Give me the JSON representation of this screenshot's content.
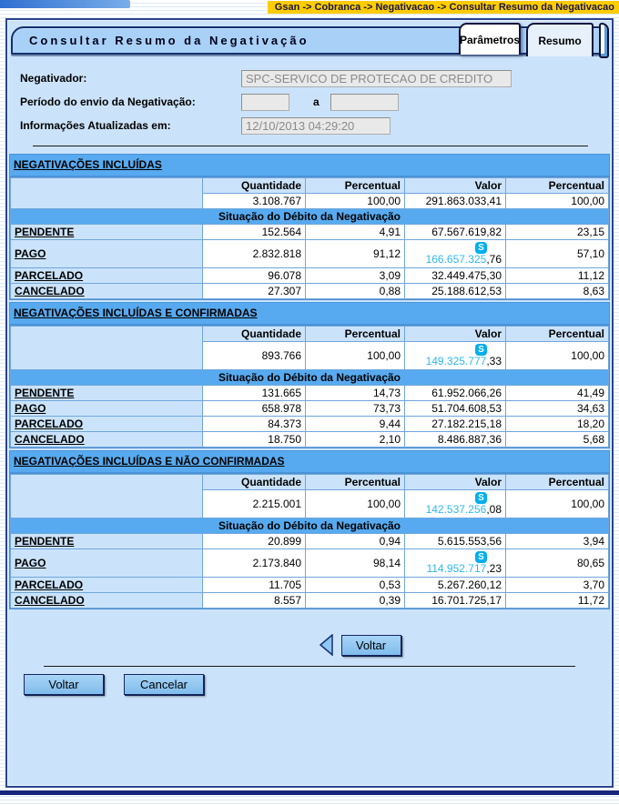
{
  "header": {
    "breadcrumb": "Gsan -> Cobranca -> Negativacao -> Consultar Resumo da Negativacao",
    "title": "Consultar Resumo da Negativação",
    "tabs": [
      {
        "label": "Parâmetros"
      },
      {
        "label": "Resumo"
      }
    ]
  },
  "form": {
    "negativador": {
      "label": "Negativador:",
      "value": "SPC-SERVICO DE PROTECAO DE CREDITO"
    },
    "periodo": {
      "label": "Período do envio da Negativação:",
      "value_start": "",
      "separator": "a",
      "value_end": ""
    },
    "atualizado": {
      "label": "Informações Atualizadas em:",
      "value": "12/10/2013 04:29:20"
    }
  },
  "table": {
    "columns": [
      "Quantidade",
      "Percentual",
      "Valor",
      "Percentual"
    ],
    "subheader": "Situação do Débito da Negativação"
  },
  "sections": [
    {
      "title": "NEGATIVAÇÕES INCLUÍDAS",
      "total": [
        "3.108.767",
        "100,00",
        "291.863.033,41",
        "100,00"
      ],
      "rows": [
        {
          "label": "PENDENTE",
          "values": [
            "152.564",
            "4,91",
            "67.567.619,82",
            "23,15"
          ]
        },
        {
          "label": "PAGO",
          "values": [
            "2.832.818",
            "91,12",
            {
              "skype": true,
              "main": "166.657.325",
              "dec": ",76"
            },
            "57,10"
          ]
        },
        {
          "label": "PARCELADO",
          "values": [
            "96.078",
            "3,09",
            "32.449.475,30",
            "11,12"
          ]
        },
        {
          "label": "CANCELADO",
          "values": [
            "27.307",
            "0,88",
            "25.188.612,53",
            "8,63"
          ]
        }
      ]
    },
    {
      "title": "NEGATIVAÇÕES INCLUÍDAS E CONFIRMADAS",
      "total": [
        "893.766",
        "100,00",
        {
          "skype": true,
          "main": "149.325.777",
          "dec": ",33"
        },
        "100,00"
      ],
      "rows": [
        {
          "label": "PENDENTE",
          "values": [
            "131.665",
            "14,73",
            "61.952.066,26",
            "41,49"
          ]
        },
        {
          "label": "PAGO",
          "values": [
            "658.978",
            "73,73",
            "51.704.608,53",
            "34,63"
          ]
        },
        {
          "label": "PARCELADO",
          "values": [
            "84.373",
            "9,44",
            "27.182.215,18",
            "18,20"
          ]
        },
        {
          "label": "CANCELADO",
          "values": [
            "18.750",
            "2,10",
            "8.486.887,36",
            "5,68"
          ]
        }
      ]
    },
    {
      "title": "NEGATIVAÇÕES INCLUÍDAS E NÃO CONFIRMADAS",
      "total": [
        "2.215.001",
        "100,00",
        {
          "skype": true,
          "main": "142.537.256",
          "dec": ",08"
        },
        "100,00"
      ],
      "rows": [
        {
          "label": "PENDENTE",
          "values": [
            "20.899",
            "0,94",
            "5.615.553,56",
            "3,94"
          ]
        },
        {
          "label": "PAGO",
          "values": [
            "2.173.840",
            "98,14",
            {
              "skype": true,
              "main": "114.952.717",
              "dec": ",23"
            },
            "80,65"
          ]
        },
        {
          "label": "PARCELADO",
          "values": [
            "11.705",
            "0,53",
            "5.267.260,12",
            "3,70"
          ]
        },
        {
          "label": "CANCELADO",
          "values": [
            "8.557",
            "0,39",
            "16.701.725,17",
            "11,72"
          ]
        }
      ]
    }
  ],
  "buttons": {
    "back": "Voltar",
    "voltar": "Voltar",
    "cancelar": "Cancelar"
  },
  "colors": {
    "skype_blue": "#00AEEF",
    "breadcrumb_bg": "#FFCC00",
    "section_header_bg": "#57AAEF"
  }
}
